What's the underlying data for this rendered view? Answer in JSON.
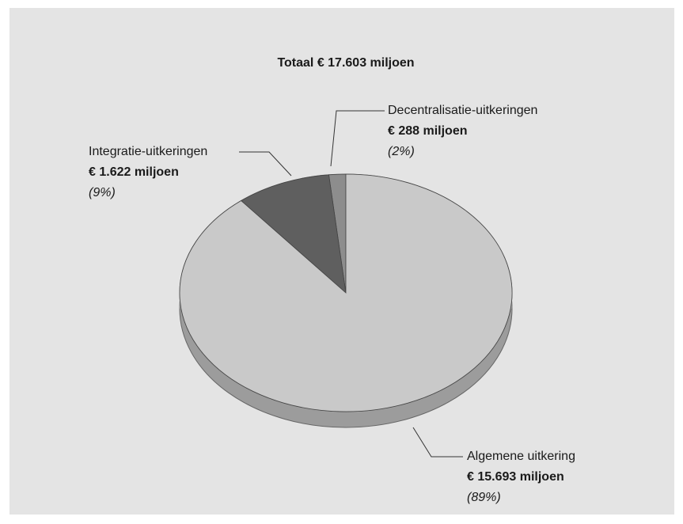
{
  "chart_data": {
    "type": "pie",
    "title": "Totaal € 17.603 miljoen",
    "categories": [
      "Decentralisatie-uitkeringen",
      "Integratie-uitkeringen",
      "Algemene uitkering"
    ],
    "values": [
      288,
      1622,
      15693
    ],
    "value_labels": [
      "€ 288 miljoen",
      "€ 1.622 miljoen",
      "€ 15.693 miljoen"
    ],
    "shares": [
      2,
      9,
      89
    ],
    "share_labels": [
      "(2%)",
      "(9%)",
      "(89%)"
    ],
    "colors": [
      "#8a8a8a",
      "#5a5a5a",
      "#c9c9c9"
    ]
  }
}
